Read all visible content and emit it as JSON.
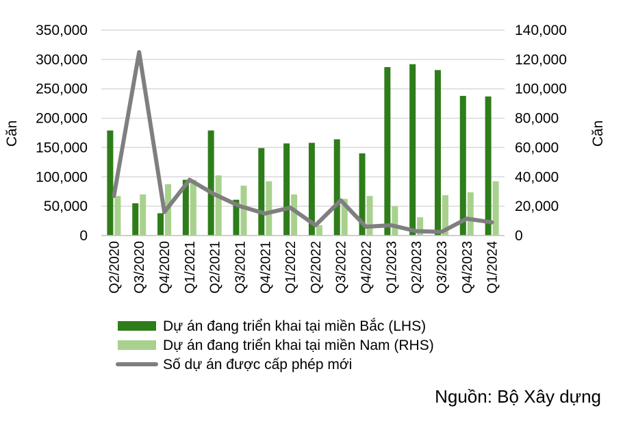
{
  "chart_data": {
    "type": "bar",
    "categories": [
      "Q2/2020",
      "Q3/2020",
      "Q4/2020",
      "Q1/2021",
      "Q2/2021",
      "Q3/2021",
      "Q4/2021",
      "Q1/2022",
      "Q2/2022",
      "Q3/2022",
      "Q4/2022",
      "Q1/2023",
      "Q2/2023",
      "Q3/2023",
      "Q4/2023",
      "Q1/2024"
    ],
    "series": [
      {
        "name": "Dự án đang triển khai tại miền Bắc (LHS)",
        "kind": "bar",
        "axis": "left",
        "color": "#2e7d1a",
        "values": [
          179000,
          55000,
          38000,
          95000,
          179000,
          61000,
          149000,
          157000,
          158000,
          164000,
          140000,
          287000,
          292000,
          282000,
          238000,
          237000
        ]
      },
      {
        "name": "Dự án đang triển khai tại miền Nam (RHS)",
        "kind": "bar",
        "axis": "right",
        "color": "#a9d18e",
        "values": [
          27000,
          28000,
          35000,
          38000,
          41000,
          34000,
          37000,
          28000,
          7000,
          25000,
          27000,
          20000,
          12500,
          27500,
          29500,
          37000
        ]
      },
      {
        "name": "Số dự án được cấp phép mới",
        "kind": "line",
        "axis": "right",
        "color": "#7f7f7f",
        "values": [
          27000,
          125000,
          16000,
          38000,
          28000,
          20000,
          15000,
          19000,
          7000,
          24000,
          6000,
          7000,
          3000,
          2500,
          11500,
          9000
        ]
      }
    ],
    "y_left": {
      "label": "Căn",
      "ylim": [
        0,
        350000
      ],
      "ticks": [
        "0",
        "50,000",
        "100,000",
        "150,000",
        "200,000",
        "250,000",
        "300,000",
        "350,000"
      ]
    },
    "y_right": {
      "label": "Căn",
      "ylim": [
        0,
        140000
      ],
      "ticks": [
        "0",
        "20,000",
        "40,000",
        "60,000",
        "80,000",
        "100,000",
        "120,000",
        "140,000"
      ]
    },
    "grid": true,
    "legend_position": "bottom",
    "source": "Nguồn: Bộ Xây dựng"
  }
}
